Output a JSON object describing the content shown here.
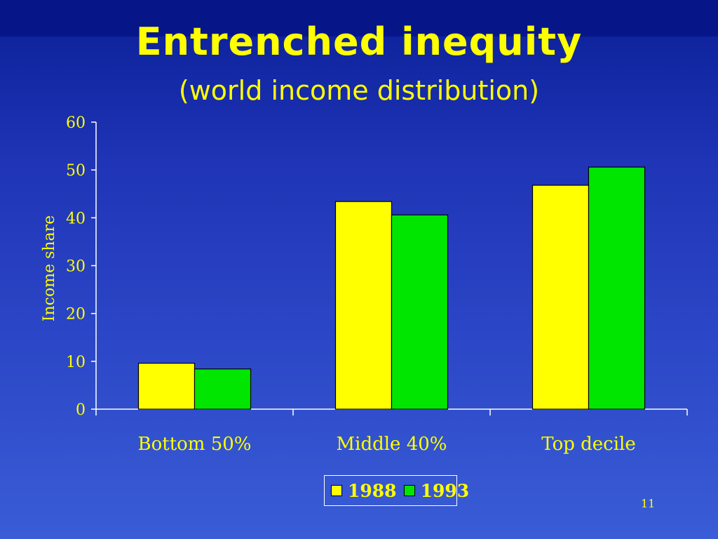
{
  "slide": {
    "title": "Entrenched inequity",
    "subtitle": "(world income distribution)",
    "page_number": "11"
  },
  "colors": {
    "text": "#ffff00",
    "axis": "#ffffff",
    "series_1988": "#ffff00",
    "series_1993": "#00e600"
  },
  "chart_data": {
    "type": "bar",
    "categories": [
      "Bottom 50%",
      "Middle 40%",
      "Top decile"
    ],
    "series": [
      {
        "name": "1988",
        "values": [
          9.6,
          43.4,
          46.8
        ],
        "color": "#ffff00"
      },
      {
        "name": "1993",
        "values": [
          8.4,
          40.6,
          50.6
        ],
        "color": "#00e600"
      }
    ],
    "title": "",
    "xlabel": "",
    "ylabel": "Income share",
    "ylim": [
      0,
      60
    ],
    "yticks": [
      "0",
      "10",
      "20",
      "30",
      "40",
      "50",
      "60"
    ],
    "grid": false,
    "legend": "bottom"
  }
}
